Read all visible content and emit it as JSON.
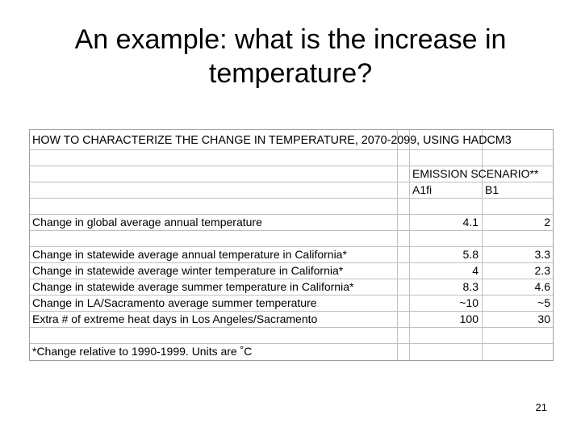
{
  "slide": {
    "title": "An example: what is the increase in temperature?",
    "page_number": "21"
  },
  "table": {
    "heading": "HOW TO CHARACTERIZE THE CHANGE IN TEMPERATURE, 2070-2099, USING HADCM3",
    "scenario_header": "EMISSION SCENARIO**",
    "col_a1fi": "A1fi",
    "col_b1": "B1",
    "rows": [
      {
        "label": "Change in global average annual temperature",
        "a1fi": "4.1",
        "b1": "2"
      },
      {
        "label": "Change in statewide average annual temperature in California*",
        "a1fi": "5.8",
        "b1": "3.3"
      },
      {
        "label": "Change in statewide average winter temperature in California*",
        "a1fi": "4",
        "b1": "2.3"
      },
      {
        "label": "Change in statewide average summer temperature in California*",
        "a1fi": "8.3",
        "b1": "4.6"
      },
      {
        "label": "Change in LA/Sacramento average summer temperature",
        "a1fi": "~10",
        "b1": "~5"
      },
      {
        "label": "Extra # of extreme heat days in Los Angeles/Sacramento",
        "a1fi": "100",
        "b1": "30"
      }
    ],
    "footnote": "*Change relative to 1990-1999. Units are ˚C"
  }
}
